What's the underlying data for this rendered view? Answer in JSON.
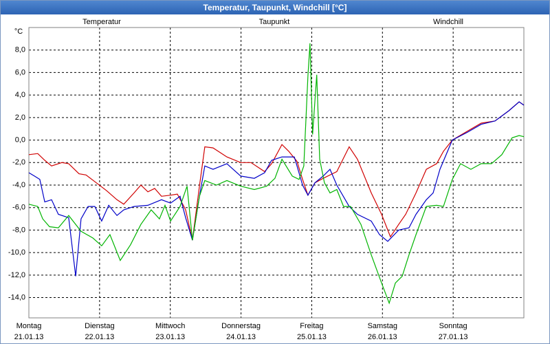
{
  "chart_data": {
    "type": "line",
    "title": "Temperatur, Taupunkt, Windchill [°C]",
    "y_unit": "°C",
    "xlim": [
      0,
      168
    ],
    "xticks": [
      {
        "value": 0,
        "label": "Montag",
        "date": "21.01.13"
      },
      {
        "value": 24,
        "label": "Dienstag",
        "date": "22.01.13"
      },
      {
        "value": 48,
        "label": "Mittwoch",
        "date": "23.01.13"
      },
      {
        "value": 72,
        "label": "Donnerstag",
        "date": "24.01.13"
      },
      {
        "value": 96,
        "label": "Freitag",
        "date": "25.01.13"
      },
      {
        "value": 120,
        "label": "Samstag",
        "date": "26.01.13"
      },
      {
        "value": 144,
        "label": "Sonntag",
        "date": "27.01.13"
      }
    ],
    "ylim": [
      -15.8,
      10
    ],
    "yticks": [
      {
        "value": 8,
        "label": "8,0"
      },
      {
        "value": 6,
        "label": "6,0"
      },
      {
        "value": 4,
        "label": "4,0"
      },
      {
        "value": 2,
        "label": "2,0"
      },
      {
        "value": 0,
        "label": "0,0"
      },
      {
        "value": -2,
        "label": "-2,0"
      },
      {
        "value": -4,
        "label": "-4,0"
      },
      {
        "value": -6,
        "label": "-6,0"
      },
      {
        "value": -8,
        "label": "-8,0"
      },
      {
        "value": -10,
        "label": "-10,0"
      },
      {
        "value": -12,
        "label": "-12,0"
      },
      {
        "value": -14,
        "label": "-14,0"
      }
    ],
    "grid": true,
    "series": [
      {
        "name": "Temperatur",
        "color": "#d00000",
        "x": [
          0,
          3.0,
          5.4,
          7.7,
          11.2,
          13.5,
          17.0,
          19.4,
          22.9,
          26.4,
          29.9,
          32.2,
          35.7,
          38.0,
          40.4,
          42.7,
          45.0,
          48.1,
          50.4,
          52.0,
          53.2,
          55.5,
          57.9,
          59.7,
          62.5,
          67.2,
          71.9,
          75.4,
          80.0,
          82.4,
          85.9,
          88.2,
          91.0,
          92.9,
          94.7,
          97.1,
          99.9,
          104.5,
          108.7,
          111.5,
          116.2,
          119.7,
          122.7,
          125.5,
          127.9,
          131.4,
          134.9,
          138.4,
          140.7,
          143.7,
          148.9,
          153.5,
          158.2,
          162.9,
          166.4,
          168
        ],
        "values": [
          -1.3,
          -1.2,
          -1.8,
          -2.3,
          -2.0,
          -2.1,
          -3.0,
          -3.1,
          -3.8,
          -4.5,
          -5.3,
          -5.7,
          -4.7,
          -4.0,
          -4.6,
          -4.3,
          -5.0,
          -4.9,
          -4.8,
          -5.6,
          -6.2,
          -8.9,
          -4.1,
          -0.6,
          -0.7,
          -1.5,
          -2.0,
          -2.0,
          -2.8,
          -2.1,
          -0.4,
          -1.0,
          -1.9,
          -3.5,
          -4.9,
          -3.8,
          -3.4,
          -2.8,
          -0.6,
          -1.7,
          -4.7,
          -6.6,
          -8.6,
          -7.5,
          -6.6,
          -4.7,
          -2.6,
          -2.1,
          -1.0,
          0.0,
          0.8,
          1.5,
          1.7,
          2.6,
          3.4,
          3.1
        ]
      },
      {
        "name": "Taupunkt",
        "color": "#0000c8",
        "x": [
          0,
          1.9,
          3.7,
          5.4,
          7.7,
          10.0,
          13.5,
          15.9,
          17.7,
          20.1,
          22.4,
          24.7,
          27.1,
          29.9,
          32.2,
          35.7,
          40.4,
          45.0,
          48.1,
          51.3,
          53.2,
          55.5,
          57.9,
          59.7,
          62.5,
          67.2,
          71.9,
          76.5,
          80.0,
          82.4,
          85.9,
          90.1,
          91.0,
          92.9,
          94.7,
          97.1,
          99.9,
          102.2,
          104.5,
          108.7,
          111.5,
          116.2,
          119.0,
          121.8,
          125.5,
          129.0,
          131.4,
          134.9,
          137.2,
          139.5,
          143.7,
          148.9,
          153.5,
          158.2,
          162.9,
          166.4,
          168
        ],
        "values": [
          -2.9,
          -3.2,
          -3.5,
          -5.5,
          -5.3,
          -6.6,
          -6.9,
          -12.1,
          -7.0,
          -5.9,
          -5.9,
          -7.2,
          -5.8,
          -6.7,
          -6.2,
          -5.9,
          -5.8,
          -5.3,
          -5.6,
          -5.0,
          -6.9,
          -8.9,
          -5.0,
          -2.3,
          -2.6,
          -2.1,
          -3.2,
          -3.4,
          -2.9,
          -1.8,
          -1.5,
          -1.5,
          -2.3,
          -4.0,
          -4.9,
          -3.8,
          -3.2,
          -2.6,
          -4.0,
          -5.9,
          -6.6,
          -7.2,
          -8.4,
          -9.0,
          -8.0,
          -7.8,
          -6.6,
          -5.3,
          -4.7,
          -2.6,
          0.0,
          0.7,
          1.4,
          1.7,
          2.6,
          3.4,
          3.1
        ]
      },
      {
        "name": "Windchill",
        "color": "#00b400",
        "x": [
          0,
          3.0,
          4.7,
          7.0,
          10.0,
          13.5,
          17.7,
          21.7,
          24.7,
          27.5,
          31.0,
          34.5,
          38.0,
          41.5,
          44.3,
          46.2,
          48.1,
          51.3,
          53.7,
          55.5,
          57.9,
          59.7,
          63.7,
          67.2,
          71.9,
          76.5,
          80.7,
          83.5,
          85.9,
          89.4,
          91.7,
          93.3,
          94.7,
          95.4,
          96.3,
          97.7,
          98.7,
          100.3,
          102.2,
          104.5,
          106.8,
          109.2,
          112.7,
          116.2,
          119.7,
          122.3,
          124.4,
          126.7,
          129.0,
          131.4,
          134.9,
          138.4,
          140.7,
          143.7,
          146.5,
          150.0,
          153.5,
          157.0,
          160.5,
          164.0,
          166.4,
          168
        ],
        "values": [
          -5.7,
          -5.9,
          -7.0,
          -7.7,
          -7.8,
          -6.7,
          -8.1,
          -8.7,
          -9.4,
          -8.4,
          -10.7,
          -9.3,
          -7.5,
          -6.2,
          -7.0,
          -5.8,
          -7.2,
          -5.9,
          -4.1,
          -8.9,
          -5.0,
          -3.6,
          -4.0,
          -3.6,
          -4.1,
          -4.4,
          -4.1,
          -3.4,
          -1.7,
          -3.2,
          -3.5,
          -2.3,
          5.7,
          8.6,
          0.5,
          5.8,
          -1.7,
          -3.8,
          -4.7,
          -4.4,
          -5.9,
          -5.9,
          -7.5,
          -10.2,
          -12.7,
          -14.5,
          -12.7,
          -12.1,
          -10.2,
          -8.4,
          -5.9,
          -5.8,
          -5.9,
          -3.5,
          -2.1,
          -2.6,
          -2.1,
          -2.1,
          -1.3,
          0.2,
          0.4,
          0.3
        ]
      }
    ]
  }
}
